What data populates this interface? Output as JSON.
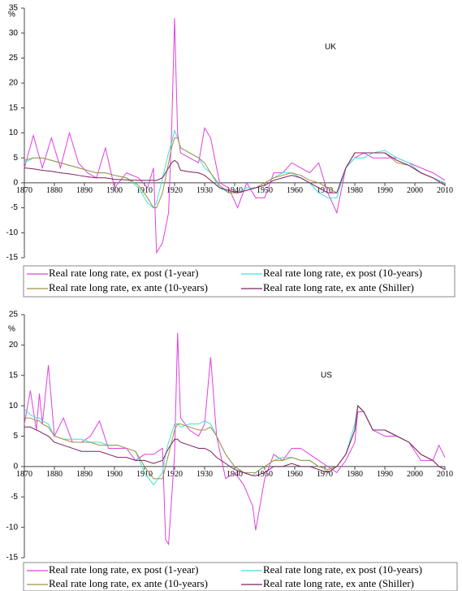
{
  "chart_data": [
    {
      "type": "line",
      "title": "UK",
      "y_label": "%",
      "x": [
        1870,
        1873,
        1876,
        1879,
        1882,
        1885,
        1888,
        1891,
        1894,
        1897,
        1900,
        1904,
        1908,
        1911,
        1913,
        1914,
        1916,
        1918,
        1919,
        1920,
        1921,
        1922,
        1925,
        1928,
        1930,
        1932,
        1935,
        1938,
        1941,
        1944,
        1947,
        1950,
        1953,
        1956,
        1959,
        1962,
        1965,
        1968,
        1971,
        1974,
        1977,
        1980,
        1983,
        1986,
        1990,
        1994,
        1998,
        2002,
        2006,
        2010
      ],
      "series": [
        {
          "name": "Real rate long rate, ex post (1-year)",
          "color": "#e040e0",
          "values": [
            3,
            9.5,
            3,
            9,
            3,
            10,
            4,
            2,
            1,
            7,
            -1,
            2,
            1,
            -1,
            3,
            -14,
            -12,
            -6,
            10,
            33,
            10,
            6,
            5,
            4,
            11,
            9,
            0,
            -1,
            -5,
            0,
            -3,
            -3,
            2,
            2,
            4,
            3,
            2,
            4,
            -2,
            -6,
            3,
            5,
            6,
            5,
            5,
            5,
            4,
            3,
            2,
            0.5
          ]
        },
        {
          "name": "Real rate long rate, ex post (10-years)",
          "color": "#40e0e0",
          "values": [
            4,
            5,
            5,
            4.5,
            4,
            3.5,
            3,
            2.5,
            2,
            2,
            1.5,
            1,
            -1,
            -4,
            -5,
            -4,
            1,
            6,
            8,
            10.5,
            9,
            7,
            6,
            5,
            3,
            2,
            -1,
            -2,
            -2,
            -1,
            -1,
            0,
            1,
            2,
            2,
            1,
            0,
            -2,
            -3,
            -3,
            3,
            5,
            5,
            6,
            6.5,
            5,
            4,
            2,
            1,
            0
          ]
        },
        {
          "name": "Real rate long rate, ex ante (10-years)",
          "color": "#a09040",
          "values": [
            4.5,
            5,
            5,
            4.5,
            4,
            3.5,
            3,
            2.5,
            2,
            2,
            1.5,
            1,
            -0.5,
            -3,
            -5,
            -5,
            -2,
            4,
            7,
            9,
            9,
            7,
            6,
            5,
            4,
            2,
            -0.5,
            -2,
            -2,
            -1.5,
            -1,
            0,
            1,
            1.5,
            2,
            1.5,
            0.5,
            0,
            -1,
            -2,
            3,
            6,
            6,
            6,
            6,
            4,
            3.5,
            2,
            1,
            -0.5
          ]
        },
        {
          "name": "Real rate long rate, ex ante (Shiller)",
          "color": "#802060",
          "values": [
            3,
            2.8,
            2.5,
            2.3,
            2,
            1.8,
            1.5,
            1.2,
            1,
            1,
            0.7,
            0.6,
            0.5,
            0.5,
            0.5,
            0.5,
            1,
            3,
            4,
            4.5,
            4,
            2.5,
            2.2,
            2,
            1.5,
            0.5,
            -1,
            -1.5,
            -2,
            -1.5,
            -1,
            -0.5,
            0.5,
            1,
            1.5,
            1,
            0,
            -1,
            -2,
            -2,
            3,
            6,
            6,
            6,
            6,
            4.5,
            3.5,
            2,
            1,
            -0.5
          ]
        }
      ],
      "xlim": [
        1870,
        2010
      ],
      "xticks": [
        1870,
        1880,
        1890,
        1900,
        1910,
        1920,
        1930,
        1940,
        1950,
        1960,
        1970,
        1980,
        1990,
        2000,
        2010
      ],
      "ylim": [
        -15,
        35
      ],
      "yticks": [
        -15,
        -10,
        -5,
        0,
        5,
        10,
        15,
        20,
        25,
        30,
        35
      ],
      "grid": false,
      "legend": "bottom"
    },
    {
      "type": "line",
      "title": "US",
      "y_label": "%",
      "x": [
        1870,
        1872,
        1874,
        1875,
        1876,
        1878,
        1880,
        1883,
        1886,
        1889,
        1892,
        1895,
        1898,
        1901,
        1904,
        1907,
        1910,
        1913,
        1916,
        1917,
        1918,
        1920,
        1921,
        1922,
        1925,
        1928,
        1930,
        1932,
        1934,
        1937,
        1940,
        1943,
        1946,
        1947,
        1950,
        1953,
        1956,
        1959,
        1962,
        1965,
        1968,
        1971,
        1974,
        1977,
        1980,
        1981,
        1983,
        1986,
        1990,
        1994,
        1998,
        2002,
        2006,
        2008,
        2010
      ],
      "series": [
        {
          "name": "Real rate long rate, ex post (1-year)",
          "color": "#e040e0",
          "values": [
            7,
            12.5,
            6,
            12,
            7,
            16.7,
            5,
            8,
            4,
            4,
            5,
            7.5,
            3,
            3,
            3,
            1,
            2,
            2,
            3,
            -12,
            -12.8,
            2,
            22,
            8,
            6,
            5,
            7,
            18,
            5,
            -2,
            -1,
            -3,
            -6.5,
            -10.5,
            -2,
            2,
            1,
            3,
            3,
            2,
            1,
            0,
            -1,
            1,
            4,
            9,
            9,
            6,
            5,
            5,
            4,
            1,
            1,
            3.5,
            1.5
          ]
        },
        {
          "name": "Real rate long rate, ex post (10-years)",
          "color": "#40e0e0",
          "values": [
            9.5,
            8.5,
            8,
            8,
            7.5,
            7,
            5,
            4.5,
            4.5,
            4.5,
            4,
            4,
            3.5,
            3.5,
            3,
            2.5,
            -1,
            -3,
            -1,
            2,
            4,
            7,
            7,
            6.5,
            7,
            7,
            7.5,
            7,
            5,
            2,
            0,
            -1,
            -1.5,
            -1,
            0,
            1,
            1.5,
            1.5,
            1,
            1,
            0,
            -0.5,
            0,
            2,
            7,
            10,
            9,
            6,
            6,
            5,
            4,
            2,
            1,
            0,
            -0.5
          ]
        },
        {
          "name": "Real rate long rate, ex ante (10-years)",
          "color": "#a09040",
          "values": [
            8,
            8,
            7.5,
            7.5,
            7,
            6.5,
            5,
            4.5,
            4,
            4,
            4,
            3.5,
            3.5,
            3.5,
            3,
            2.5,
            0,
            -2,
            -2,
            0,
            2,
            6,
            7,
            7,
            6.5,
            6,
            6,
            6.5,
            5,
            2,
            0,
            -1,
            -1,
            -1,
            0,
            1,
            1,
            1.5,
            1,
            1,
            0,
            -0.5,
            0,
            2,
            6,
            10,
            9,
            6,
            6,
            5,
            4,
            2,
            1,
            0,
            -0.5
          ]
        },
        {
          "name": "Real rate long rate, ex ante (Shiller)",
          "color": "#802060",
          "values": [
            6.5,
            6.5,
            6,
            5.8,
            5.5,
            5,
            4,
            3.5,
            3,
            2.5,
            2.5,
            2.5,
            2,
            1.5,
            1.5,
            1,
            1,
            0.5,
            1,
            2,
            3,
            4.5,
            4.5,
            4,
            3.5,
            3,
            3,
            2.5,
            1.5,
            0.5,
            -0.5,
            -1,
            -1.5,
            -1.5,
            -1,
            0,
            0,
            0.5,
            0,
            0,
            -0.5,
            -1,
            0,
            2,
            6,
            10,
            9,
            6,
            6,
            5,
            4,
            2,
            1,
            0,
            -0.5
          ]
        }
      ],
      "xlim": [
        1870,
        2010
      ],
      "xticks": [
        1870,
        1880,
        1890,
        1900,
        1910,
        1920,
        1930,
        1940,
        1950,
        1960,
        1970,
        1980,
        1990,
        2000,
        2010
      ],
      "ylim": [
        -15,
        25
      ],
      "yticks": [
        -15,
        -10,
        -5,
        0,
        5,
        10,
        15,
        20,
        25
      ],
      "grid": false,
      "legend": "bottom"
    }
  ]
}
